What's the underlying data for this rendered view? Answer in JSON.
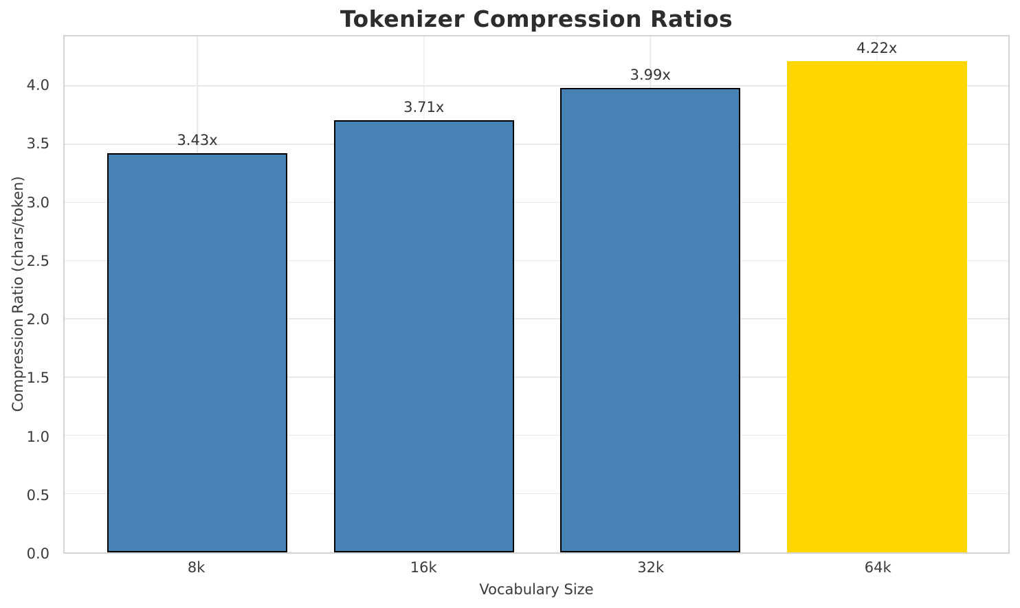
{
  "chart_data": {
    "type": "bar",
    "title": "Tokenizer Compression Ratios",
    "xlabel": "Vocabulary Size",
    "ylabel": "Compression Ratio (chars/token)",
    "categories": [
      "8k",
      "16k",
      "32k",
      "64k"
    ],
    "values": [
      3.43,
      3.71,
      3.99,
      4.22
    ],
    "bar_labels": [
      "3.43x",
      "3.71x",
      "3.99x",
      "4.22x"
    ],
    "bar_colors": [
      "#4682B4",
      "#4682B4",
      "#4682B4",
      "#FFD700"
    ],
    "bar_edge_colors": [
      "#000000",
      "#000000",
      "#000000",
      null
    ],
    "default_color": "#4682B4",
    "highlight_color": "#FFD700",
    "ylim": [
      0,
      4.43
    ],
    "yticks": [
      0.0,
      0.5,
      1.0,
      1.5,
      2.0,
      2.5,
      3.0,
      3.5,
      4.0
    ],
    "ytick_labels": [
      "0.0",
      "0.5",
      "1.0",
      "1.5",
      "2.0",
      "2.5",
      "3.0",
      "3.5",
      "4.0"
    ],
    "grid": true,
    "legend": "none"
  }
}
